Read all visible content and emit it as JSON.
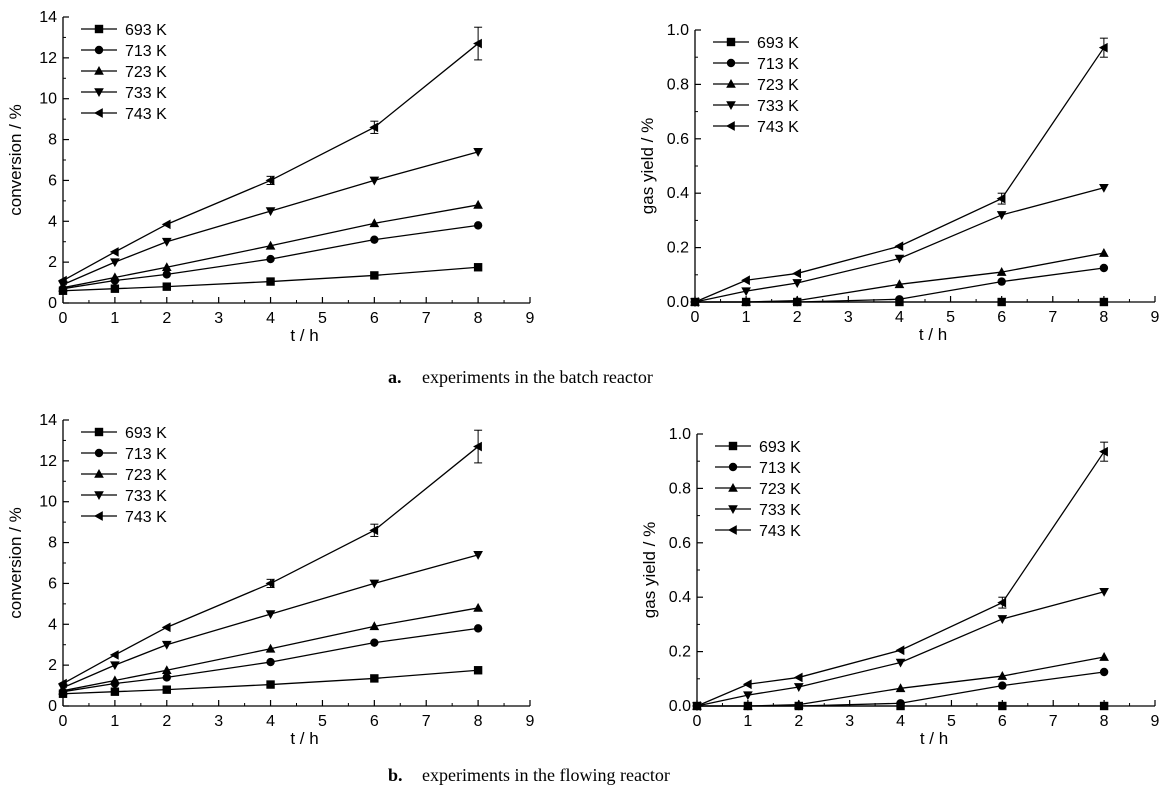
{
  "captions": [
    {
      "letter": "a.",
      "text": "experiments in the batch reactor"
    },
    {
      "letter": "b.",
      "text": "experiments in the flowing reactor"
    }
  ],
  "chart_data": [
    {
      "id": "a-conversion",
      "type": "line",
      "xlabel": "t / h",
      "ylabel": "conversion / %",
      "xlim": [
        0,
        9
      ],
      "ylim": [
        0,
        14
      ],
      "xticks": [
        0,
        1,
        2,
        3,
        4,
        5,
        6,
        7,
        8,
        9
      ],
      "yticks": [
        0,
        2,
        4,
        6,
        8,
        10,
        12,
        14
      ],
      "ytick_labels": [
        "0",
        "2",
        "4",
        "6",
        "8",
        "10",
        "12",
        "14"
      ],
      "legend_position": "top-left",
      "x": [
        0,
        1,
        2,
        4,
        6,
        8
      ],
      "series": [
        {
          "name": "693 K",
          "marker": "square",
          "values": [
            0.6,
            0.7,
            0.8,
            1.05,
            1.35,
            1.75
          ]
        },
        {
          "name": "713 K",
          "marker": "circle",
          "values": [
            0.7,
            1.1,
            1.4,
            2.15,
            3.1,
            3.8
          ]
        },
        {
          "name": "723 K",
          "marker": "triangle-up",
          "values": [
            0.75,
            1.25,
            1.75,
            2.8,
            3.9,
            4.8
          ]
        },
        {
          "name": "733 K",
          "marker": "triangle-down",
          "values": [
            0.9,
            2.0,
            3.0,
            4.5,
            6.0,
            7.4
          ]
        },
        {
          "name": "743 K",
          "marker": "triangle-left",
          "values": [
            1.1,
            2.5,
            3.85,
            6.0,
            8.6,
            12.7
          ],
          "errors": [
            0,
            0,
            0,
            0.2,
            0.3,
            0.8
          ]
        }
      ]
    },
    {
      "id": "a-gas",
      "type": "line",
      "xlabel": "t / h",
      "ylabel": "gas yield / %",
      "xlim": [
        0,
        9
      ],
      "ylim": [
        0,
        1.0
      ],
      "xticks": [
        0,
        1,
        2,
        3,
        4,
        5,
        6,
        7,
        8,
        9
      ],
      "yticks": [
        0,
        0.2,
        0.4,
        0.6,
        0.8,
        1.0
      ],
      "ytick_labels": [
        "0.0",
        "0.2",
        "0.4",
        "0.6",
        "0.8",
        "1.0"
      ],
      "legend_position": "top-left",
      "x": [
        0,
        1,
        2,
        4,
        6,
        8
      ],
      "series": [
        {
          "name": "693 K",
          "marker": "square",
          "values": [
            0,
            0,
            0,
            0,
            0,
            0
          ]
        },
        {
          "name": "713 K",
          "marker": "circle",
          "values": [
            0,
            0,
            0,
            0.01,
            0.075,
            0.125
          ]
        },
        {
          "name": "723 K",
          "marker": "triangle-up",
          "values": [
            0,
            0,
            0.005,
            0.065,
            0.11,
            0.18
          ]
        },
        {
          "name": "733 K",
          "marker": "triangle-down",
          "values": [
            0,
            0.04,
            0.07,
            0.16,
            0.32,
            0.42
          ]
        },
        {
          "name": "743 K",
          "marker": "triangle-left",
          "values": [
            0,
            0.08,
            0.105,
            0.205,
            0.38,
            0.935
          ],
          "errors": [
            0,
            0,
            0,
            0,
            0.02,
            0.035
          ]
        }
      ]
    },
    {
      "id": "b-conversion",
      "type": "line",
      "xlabel": "t / h",
      "ylabel": "conversion / %",
      "xlim": [
        0,
        9
      ],
      "ylim": [
        0,
        14
      ],
      "xticks": [
        0,
        1,
        2,
        3,
        4,
        5,
        6,
        7,
        8,
        9
      ],
      "yticks": [
        0,
        2,
        4,
        6,
        8,
        10,
        12,
        14
      ],
      "ytick_labels": [
        "0",
        "2",
        "4",
        "6",
        "8",
        "10",
        "12",
        "14"
      ],
      "legend_position": "top-left",
      "x": [
        0,
        1,
        2,
        4,
        6,
        8
      ],
      "series": [
        {
          "name": "693 K",
          "marker": "square",
          "values": [
            0.6,
            0.7,
            0.8,
            1.05,
            1.35,
            1.75
          ]
        },
        {
          "name": "713 K",
          "marker": "circle",
          "values": [
            0.7,
            1.1,
            1.4,
            2.15,
            3.1,
            3.8
          ]
        },
        {
          "name": "723 K",
          "marker": "triangle-up",
          "values": [
            0.75,
            1.25,
            1.75,
            2.8,
            3.9,
            4.8
          ]
        },
        {
          "name": "733 K",
          "marker": "triangle-down",
          "values": [
            0.9,
            2.0,
            3.0,
            4.5,
            6.0,
            7.4
          ]
        },
        {
          "name": "743 K",
          "marker": "triangle-left",
          "values": [
            1.1,
            2.5,
            3.85,
            6.0,
            8.6,
            12.7
          ],
          "errors": [
            0,
            0,
            0,
            0.2,
            0.3,
            0.8
          ]
        }
      ]
    },
    {
      "id": "b-gas",
      "type": "line",
      "xlabel": "t / h",
      "ylabel": "gas yield / %",
      "xlim": [
        0,
        9
      ],
      "ylim": [
        0,
        1.0
      ],
      "xticks": [
        0,
        1,
        2,
        3,
        4,
        5,
        6,
        7,
        8,
        9
      ],
      "yticks": [
        0,
        0.2,
        0.4,
        0.6,
        0.8,
        1.0
      ],
      "ytick_labels": [
        "0.0",
        "0.2",
        "0.4",
        "0.6",
        "0.8",
        "1.0"
      ],
      "legend_position": "top-left",
      "x": [
        0,
        1,
        2,
        4,
        6,
        8
      ],
      "series": [
        {
          "name": "693 K",
          "marker": "square",
          "values": [
            0,
            0,
            0,
            0,
            0,
            0
          ]
        },
        {
          "name": "713 K",
          "marker": "circle",
          "values": [
            0,
            0,
            0,
            0.01,
            0.075,
            0.125
          ]
        },
        {
          "name": "723 K",
          "marker": "triangle-up",
          "values": [
            0,
            0,
            0.005,
            0.065,
            0.11,
            0.18
          ]
        },
        {
          "name": "733 K",
          "marker": "triangle-down",
          "values": [
            0,
            0.04,
            0.07,
            0.16,
            0.32,
            0.42
          ]
        },
        {
          "name": "743 K",
          "marker": "triangle-left",
          "values": [
            0,
            0.08,
            0.105,
            0.205,
            0.38,
            0.935
          ],
          "errors": [
            0,
            0,
            0,
            0,
            0.02,
            0.035
          ]
        }
      ]
    }
  ]
}
